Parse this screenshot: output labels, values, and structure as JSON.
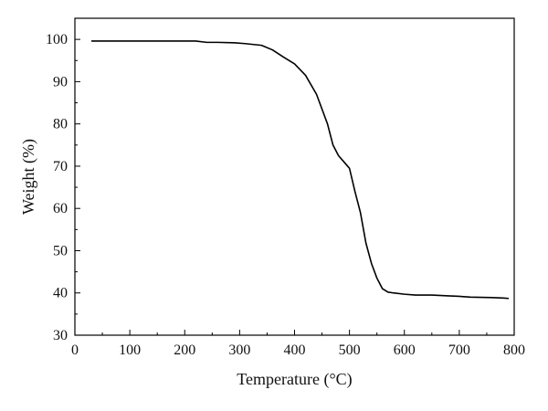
{
  "chart_data": {
    "type": "line",
    "xlabel": "Temperature (°C)",
    "ylabel": "Weight (%)",
    "xlim": [
      0,
      800
    ],
    "ylim": [
      30,
      105
    ],
    "xticks": [
      0,
      100,
      200,
      300,
      400,
      500,
      600,
      700,
      800
    ],
    "yticks": [
      30,
      40,
      50,
      60,
      70,
      80,
      90,
      100
    ],
    "grid": false,
    "series": [
      {
        "x": [
          30,
          100,
          150,
          200,
          220,
          240,
          260,
          290,
          310,
          340,
          360,
          380,
          400,
          420,
          440,
          460,
          470,
          480,
          490,
          500,
          510,
          520,
          530,
          540,
          550,
          560,
          570,
          580,
          600,
          620,
          650,
          680,
          700,
          720,
          760,
          780,
          790
        ],
        "y": [
          99.6,
          99.6,
          99.6,
          99.6,
          99.6,
          99.3,
          99.3,
          99.2,
          99.0,
          98.6,
          97.5,
          95.8,
          94.2,
          91.5,
          87.0,
          80.0,
          75.0,
          72.5,
          71.0,
          69.5,
          64.0,
          59.0,
          51.8,
          47.0,
          43.5,
          41.0,
          40.2,
          40.0,
          39.7,
          39.5,
          39.5,
          39.3,
          39.2,
          39.0,
          38.9,
          38.8,
          38.7
        ]
      }
    ]
  }
}
